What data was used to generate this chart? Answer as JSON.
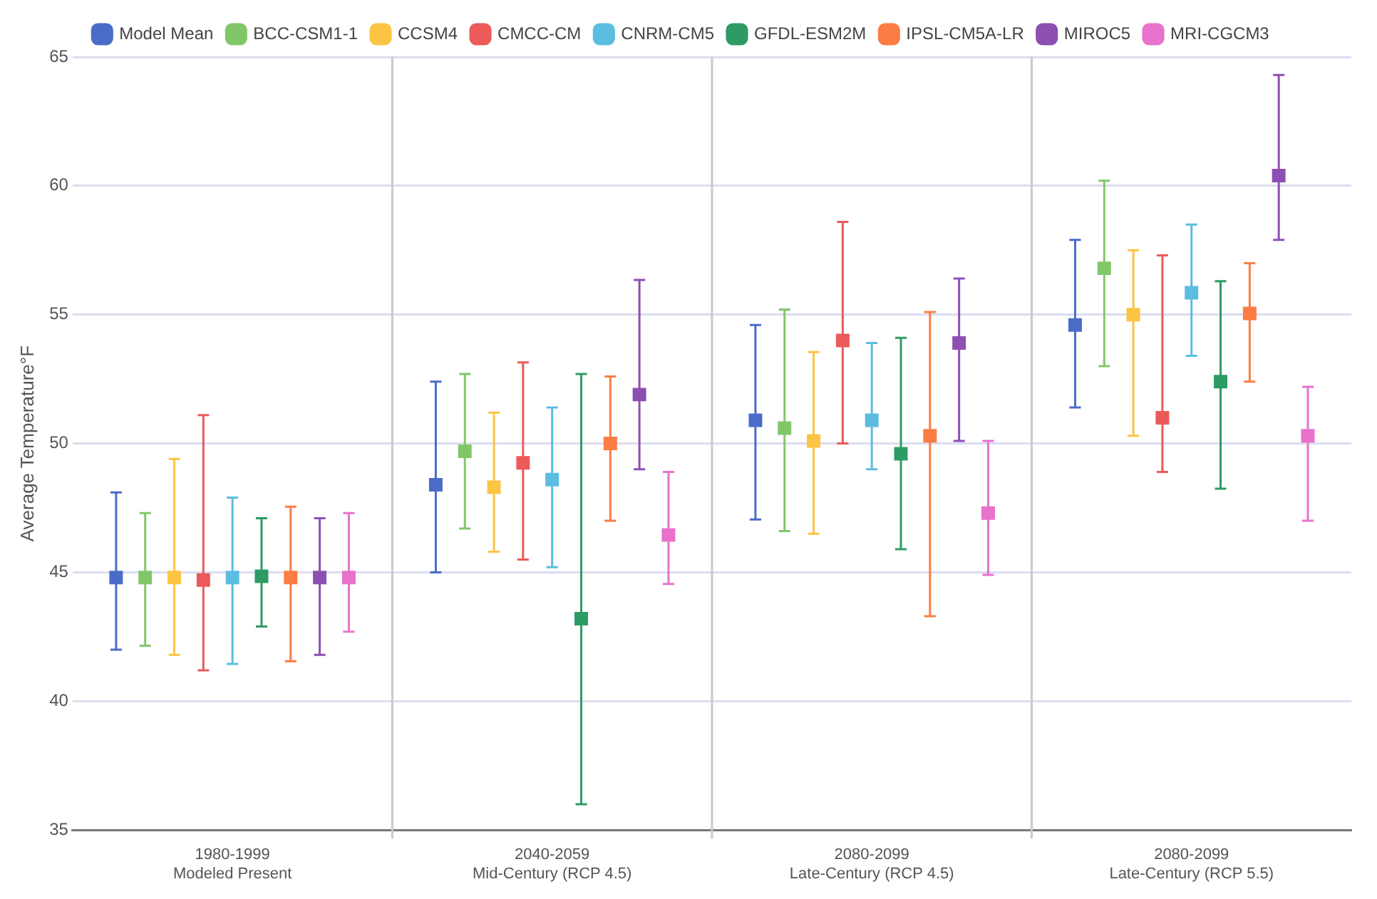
{
  "chart_data": {
    "type": "scatter",
    "ylabel": "Average Temperature°F",
    "categories": [
      "1980-1999\nModeled Present",
      "2040-2059\nMid-Century (RCP 4.5)",
      "2080-2099\nLate-Century (RCP 4.5)",
      "2080-2099\nLate-Century (RCP 5.5)"
    ],
    "ylim": [
      35,
      65
    ],
    "yticks": [
      35,
      40,
      45,
      50,
      55,
      60,
      65
    ],
    "grid": true,
    "legend": "top",
    "marker": "square",
    "series": [
      {
        "name": "Model Mean",
        "color": "#4a6cc8",
        "values": [
          44.8,
          48.4,
          50.9,
          54.6
        ],
        "errors": [
          [
            42.0,
            48.1
          ],
          [
            45.0,
            52.4
          ],
          [
            47.05,
            54.6
          ],
          [
            51.4,
            57.9
          ]
        ]
      },
      {
        "name": "BCC-CSM1-1",
        "color": "#82c66a",
        "values": [
          44.8,
          49.7,
          50.6,
          56.8
        ],
        "errors": [
          [
            42.15,
            47.3
          ],
          [
            46.7,
            52.7
          ],
          [
            46.6,
            55.2
          ],
          [
            53.0,
            60.2
          ]
        ]
      },
      {
        "name": "CCSM4",
        "color": "#fcc443",
        "values": [
          44.8,
          48.3,
          50.1,
          55.0
        ],
        "errors": [
          [
            41.8,
            49.4
          ],
          [
            45.8,
            51.2
          ],
          [
            46.5,
            53.55
          ],
          [
            50.3,
            57.5
          ]
        ]
      },
      {
        "name": "CMCC-CM",
        "color": "#ec5a5a",
        "values": [
          44.7,
          49.25,
          54.0,
          51.0
        ],
        "errors": [
          [
            41.2,
            51.1
          ],
          [
            45.5,
            53.15
          ],
          [
            50.0,
            58.6
          ],
          [
            48.9,
            57.3
          ]
        ]
      },
      {
        "name": "CNRM-CM5",
        "color": "#5bbde0",
        "values": [
          44.8,
          48.6,
          50.9,
          55.85
        ],
        "errors": [
          [
            41.45,
            47.9
          ],
          [
            45.2,
            51.4
          ],
          [
            49.0,
            53.9
          ],
          [
            53.4,
            58.5
          ]
        ]
      },
      {
        "name": "GFDL-ESM2M",
        "color": "#2e9b64",
        "values": [
          44.85,
          43.2,
          49.6,
          52.4
        ],
        "errors": [
          [
            42.9,
            47.1
          ],
          [
            36.0,
            52.7
          ],
          [
            45.9,
            54.1
          ],
          [
            48.25,
            56.3
          ]
        ]
      },
      {
        "name": "IPSL-CM5A-LR",
        "color": "#fb7d43",
        "values": [
          44.8,
          50.0,
          50.3,
          55.05
        ],
        "errors": [
          [
            41.55,
            47.55
          ],
          [
            47.0,
            52.6
          ],
          [
            43.3,
            55.1
          ],
          [
            52.4,
            57.0
          ]
        ]
      },
      {
        "name": "MIROC5",
        "color": "#8d4fb2",
        "values": [
          44.8,
          51.9,
          53.9,
          60.4
        ],
        "errors": [
          [
            41.8,
            47.1
          ],
          [
            49.0,
            56.35
          ],
          [
            50.1,
            56.4
          ],
          [
            57.9,
            64.3
          ]
        ]
      },
      {
        "name": "MRI-CGCM3",
        "color": "#e872cc",
        "values": [
          44.8,
          46.45,
          47.3,
          50.3
        ],
        "errors": [
          [
            42.7,
            47.3
          ],
          [
            44.55,
            48.9
          ],
          [
            44.9,
            50.1
          ],
          [
            47.0,
            52.2
          ]
        ]
      }
    ]
  }
}
